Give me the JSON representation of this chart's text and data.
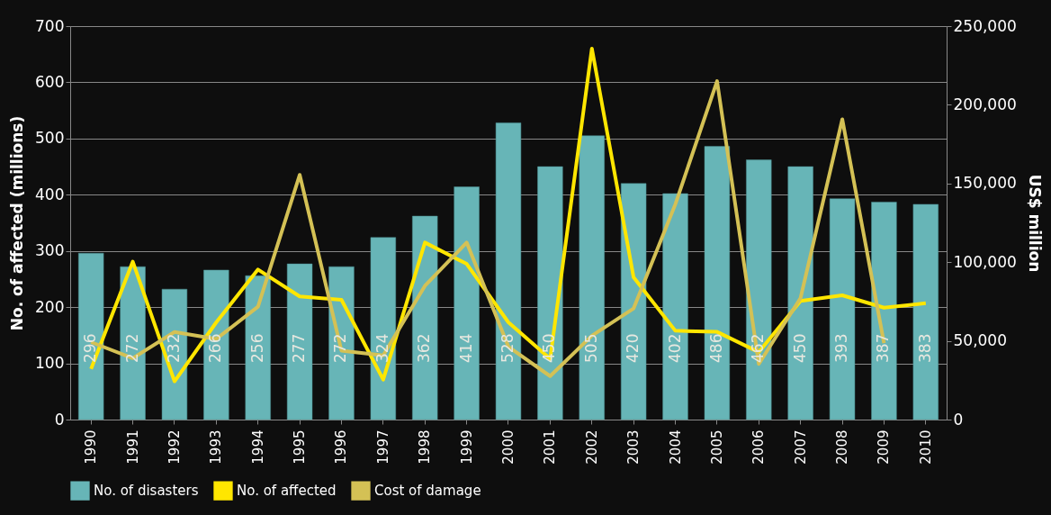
{
  "chart_data": {
    "type": "bar",
    "ylabel": "No. of affected (millions)",
    "y2label": "US$ million",
    "categories": [
      "1990",
      "1991",
      "1992",
      "1993",
      "1994",
      "1995",
      "1996",
      "1997",
      "1998",
      "1999",
      "2000",
      "2001",
      "2002",
      "2003",
      "2004",
      "2005",
      "2006",
      "2007",
      "2008",
      "2009",
      "2010"
    ],
    "series": [
      {
        "name": "No. of disasters",
        "color": "#67b5b7",
        "values": [
          296,
          272,
          232,
          266,
          256,
          277,
          272,
          324,
          362,
          414,
          528,
          450,
          505,
          420,
          402,
          486,
          462,
          450,
          393,
          387,
          383
        ],
        "value_labels": [
          "296",
          "272",
          "232",
          "266",
          "256",
          "277",
          "272",
          "324",
          "362",
          "414",
          "528",
          "450",
          "505",
          "420",
          "402",
          "486",
          "462",
          "450",
          "393",
          "387",
          "383"
        ]
      },
      {
        "name": "No. of affected",
        "type": "line",
        "color": "#ffe600",
        "values": [
          90,
          281,
          68,
          173,
          267,
          219,
          213,
          71,
          315,
          277,
          173,
          108,
          660,
          253,
          158,
          156,
          120,
          211,
          221,
          199,
          207
        ]
      },
      {
        "name": "Cost of damage",
        "type": "line",
        "color": "#d4c155",
        "axis": "y2",
        "values": [
          49200,
          39000,
          55600,
          51200,
          71700,
          155500,
          43700,
          40800,
          85000,
          112500,
          46300,
          27600,
          53300,
          70600,
          136800,
          215000,
          35300,
          77200,
          190800,
          48500,
          null
        ]
      }
    ],
    "ylim": [
      0,
      700
    ],
    "yticks": [
      0,
      100,
      200,
      300,
      400,
      500,
      600,
      700
    ],
    "y2lim": [
      0,
      250000
    ],
    "y2ticks": [
      0,
      {
        "value": 50000,
        "label": "50,000"
      },
      {
        "value": 100000,
        "label": "100,000"
      },
      {
        "value": 150000,
        "label": "150,000"
      },
      {
        "value": 200000,
        "label": "200,000"
      },
      {
        "value": 250000,
        "label": "250,000"
      }
    ],
    "grid": "y",
    "legend": "bottom",
    "marker": "none",
    "line_style": "solid"
  }
}
